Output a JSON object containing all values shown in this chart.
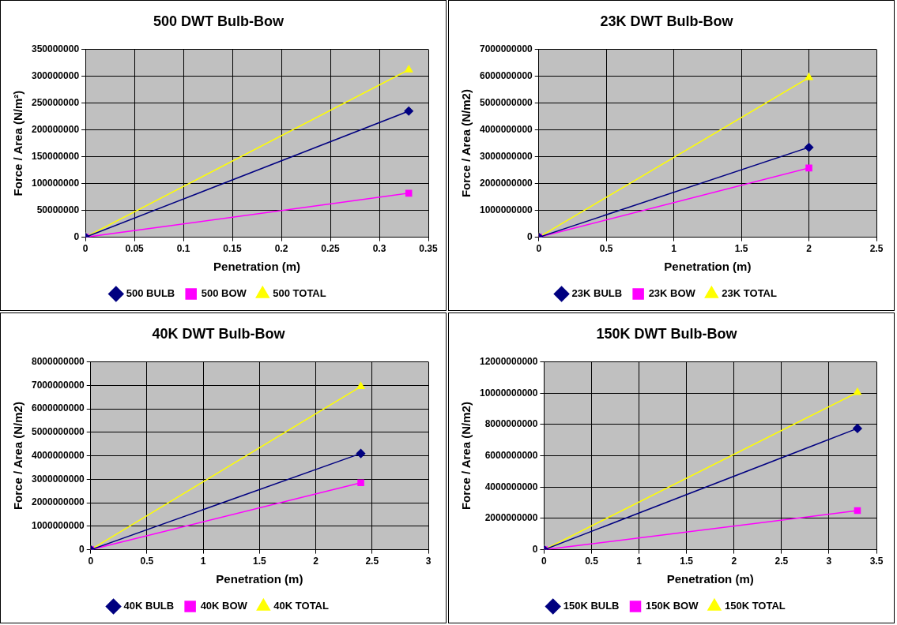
{
  "chart_data": [
    {
      "type": "line",
      "title": "500 DWT Bulb-Bow",
      "xlabel": "Penetration (m)",
      "ylabel": "Force / Area (N/m²)",
      "x": [
        0,
        0.33
      ],
      "xlim": [
        0,
        0.35
      ],
      "xticks": [
        0,
        0.05,
        0.1,
        0.15,
        0.2,
        0.25,
        0.3,
        0.35
      ],
      "ylim": [
        0,
        350000000
      ],
      "yticks": [
        0,
        50000000,
        100000000,
        150000000,
        200000000,
        250000000,
        300000000,
        350000000
      ],
      "grid": true,
      "legend": "bottom",
      "line_style": "solid",
      "series": [
        {
          "name": "500 BULB",
          "color": "#000080",
          "marker": "diamond",
          "values": [
            0,
            235000000
          ]
        },
        {
          "name": "500 BOW",
          "color": "#ff00ff",
          "marker": "square",
          "values": [
            0,
            82000000
          ]
        },
        {
          "name": "500 TOTAL",
          "color": "#ffff00",
          "marker": "triangle",
          "values": [
            0,
            312000000
          ]
        }
      ]
    },
    {
      "type": "line",
      "title": "23K DWT Bulb-Bow",
      "xlabel": "Penetration (m)",
      "ylabel": "Force / Area (N/m2)",
      "x": [
        0,
        2
      ],
      "xlim": [
        0,
        2.5
      ],
      "xticks": [
        0,
        0.5,
        1,
        1.5,
        2,
        2.5
      ],
      "ylim": [
        0,
        7000000000
      ],
      "yticks": [
        0,
        1000000000,
        2000000000,
        3000000000,
        4000000000,
        5000000000,
        6000000000,
        7000000000
      ],
      "grid": true,
      "legend": "bottom",
      "line_style": "solid",
      "series": [
        {
          "name": "23K BULB",
          "color": "#000080",
          "marker": "diamond",
          "values": [
            0,
            3350000000
          ]
        },
        {
          "name": "23K BOW",
          "color": "#ff00ff",
          "marker": "square",
          "values": [
            0,
            2580000000
          ]
        },
        {
          "name": "23K TOTAL",
          "color": "#ffff00",
          "marker": "triangle",
          "values": [
            0,
            5950000000
          ]
        }
      ]
    },
    {
      "type": "line",
      "title": "40K DWT Bulb-Bow",
      "xlabel": "Penetration (m)",
      "ylabel": "Force / Area (N/m2)",
      "x": [
        0,
        2.4
      ],
      "xlim": [
        0,
        3
      ],
      "xticks": [
        0,
        0.5,
        1,
        1.5,
        2,
        2.5,
        3
      ],
      "ylim": [
        0,
        8000000000
      ],
      "yticks": [
        0,
        1000000000,
        2000000000,
        3000000000,
        4000000000,
        5000000000,
        6000000000,
        7000000000,
        8000000000
      ],
      "grid": true,
      "legend": "bottom",
      "line_style": "solid",
      "series": [
        {
          "name": "40K BULB",
          "color": "#000080",
          "marker": "diamond",
          "values": [
            0,
            4100000000
          ]
        },
        {
          "name": "40K BOW",
          "color": "#ff00ff",
          "marker": "square",
          "values": [
            0,
            2850000000
          ]
        },
        {
          "name": "40K TOTAL",
          "color": "#ffff00",
          "marker": "triangle",
          "values": [
            0,
            6950000000
          ]
        }
      ]
    },
    {
      "type": "line",
      "title": "150K DWT Bulb-Bow",
      "xlabel": "Penetration (m)",
      "ylabel": "Force / Area (N/m2)",
      "x": [
        0,
        3.3
      ],
      "xlim": [
        0,
        3.5
      ],
      "xticks": [
        0,
        0.5,
        1,
        1.5,
        2,
        2.5,
        3,
        3.5
      ],
      "ylim": [
        0,
        12000000000
      ],
      "yticks": [
        0,
        2000000000,
        4000000000,
        6000000000,
        8000000000,
        10000000000,
        12000000000
      ],
      "grid": true,
      "legend": "bottom",
      "line_style": "solid",
      "series": [
        {
          "name": "150K BULB",
          "color": "#000080",
          "marker": "diamond",
          "values": [
            0,
            7750000000
          ]
        },
        {
          "name": "150K BOW",
          "color": "#ff00ff",
          "marker": "square",
          "values": [
            0,
            2500000000
          ]
        },
        {
          "name": "150K TOTAL",
          "color": "#ffff00",
          "marker": "triangle",
          "values": [
            0,
            10050000000
          ]
        }
      ]
    }
  ]
}
